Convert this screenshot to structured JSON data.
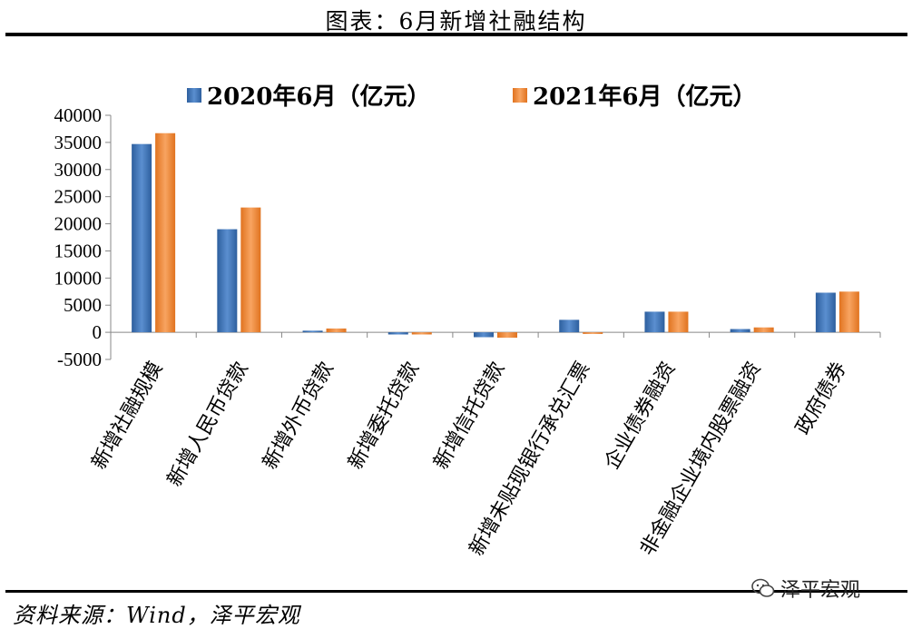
{
  "header": {
    "title": "图表：6月新增社融结构"
  },
  "footer": {
    "source": "资料来源：Wind，泽平宏观",
    "watermark": "泽平宏观"
  },
  "chart_data": {
    "type": "bar",
    "title": "图表：6月新增社融结构",
    "xlabel": "",
    "ylabel": "",
    "ylim": [
      -5000,
      40000
    ],
    "yticks": [
      -5000,
      0,
      5000,
      10000,
      15000,
      20000,
      25000,
      30000,
      35000,
      40000
    ],
    "grid": false,
    "legend_position": "top",
    "categories": [
      "新增社融规模",
      "新增人民币贷款",
      "新增外币贷款",
      "新增委托贷款",
      "新增信托贷款",
      "新增未贴现银行承兑汇票",
      "企业债券融资",
      "非金融企业境内股票融资",
      "政府债券"
    ],
    "series": [
      {
        "name": "2020年6月（亿元）",
        "color": "#4a7ebb",
        "values": [
          34700,
          19000,
          300,
          -400,
          -900,
          2300,
          3800,
          600,
          7300
        ]
      },
      {
        "name": "2021年6月（亿元）",
        "color": "#f08c3a",
        "values": [
          36700,
          23000,
          700,
          -400,
          -1000,
          -300,
          3800,
          900,
          7500
        ]
      }
    ]
  }
}
